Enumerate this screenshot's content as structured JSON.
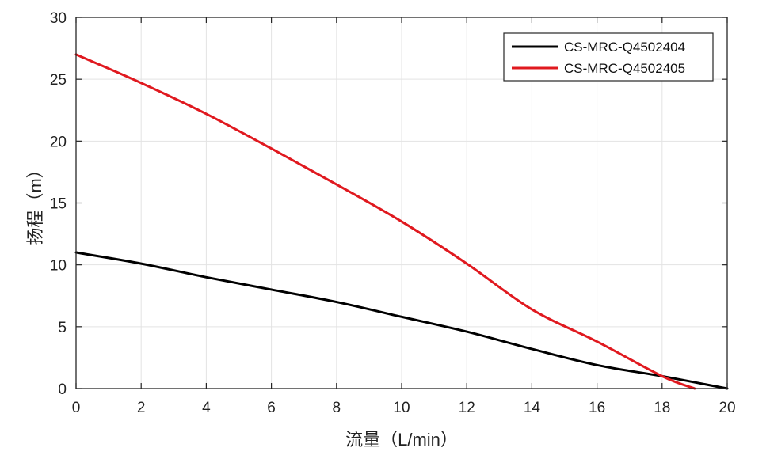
{
  "chart_data": {
    "type": "line",
    "xlabel": "流量（L/min）",
    "ylabel": "扬程（m）",
    "xlim": [
      0,
      20
    ],
    "ylim": [
      0,
      30
    ],
    "xticks": [
      "0",
      "2",
      "4",
      "6",
      "8",
      "10",
      "12",
      "14",
      "16",
      "18",
      "20"
    ],
    "yticks": [
      "0",
      "5",
      "10",
      "15",
      "20",
      "25",
      "30"
    ],
    "grid": true,
    "legend_position": "top-right",
    "series": [
      {
        "name": "CS-MRC-Q4502404",
        "color": "#000000",
        "x": [
          0,
          2,
          4,
          6,
          8,
          10,
          12,
          14,
          16,
          18,
          20
        ],
        "y": [
          11.0,
          10.1,
          9.0,
          8.0,
          7.0,
          5.8,
          4.6,
          3.2,
          1.9,
          1.0,
          0.0
        ]
      },
      {
        "name": "CS-MRC-Q4502405",
        "color": "#e0191f",
        "x": [
          0,
          2,
          4,
          6,
          8,
          10,
          12,
          14,
          16,
          18,
          19
        ],
        "y": [
          27.0,
          24.7,
          22.2,
          19.4,
          16.5,
          13.5,
          10.1,
          6.4,
          3.8,
          1.0,
          0.0
        ]
      }
    ]
  }
}
